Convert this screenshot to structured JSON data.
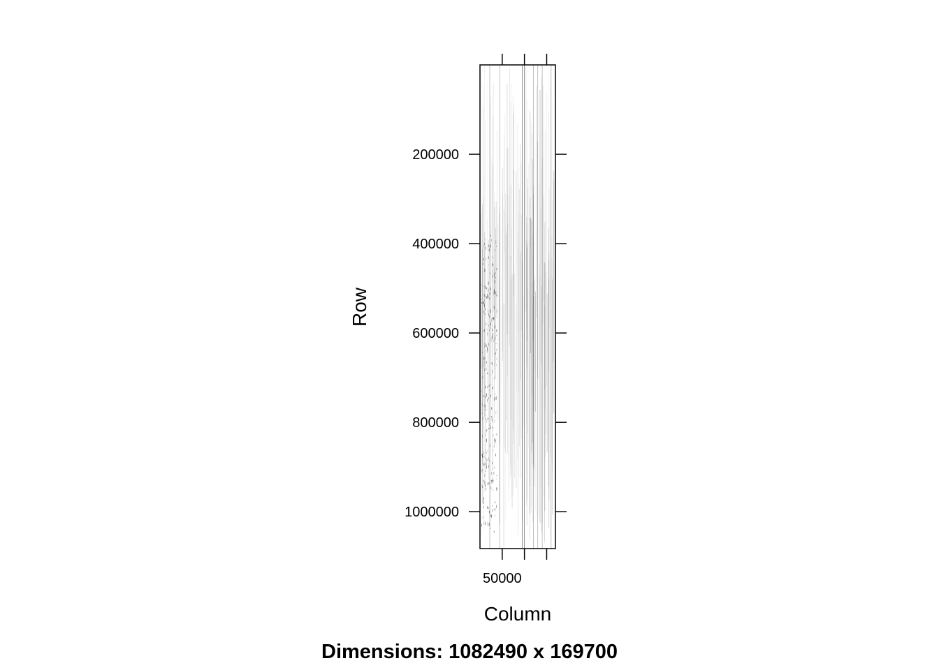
{
  "chart_data": {
    "type": "heatmap",
    "subtype": "sparse-matrix-image",
    "matrix": {
      "rows": 1082490,
      "cols": 169700
    },
    "xlabel": "Column",
    "ylabel": "Row",
    "caption": "Dimensions: 1082490 x 169700",
    "xlim": [
      0,
      169700
    ],
    "ylim": [
      1082490,
      0
    ],
    "x_ticks": [
      {
        "value": 50000,
        "label": "50000"
      },
      {
        "value": 100000,
        "label": ""
      },
      {
        "value": 150000,
        "label": ""
      }
    ],
    "y_ticks": [
      {
        "value": 200000,
        "label": "200000"
      },
      {
        "value": 400000,
        "label": "400000"
      },
      {
        "value": 600000,
        "label": "600000"
      },
      {
        "value": 800000,
        "label": "800000"
      },
      {
        "value": 1000000,
        "label": "1000000"
      }
    ],
    "dense_columns": [
      100000,
      95000,
      130000,
      45000,
      22000,
      160000,
      120000,
      140000
    ],
    "grid": false,
    "colors": {
      "frame": "#000000",
      "nonzero": "#000000",
      "background": "#ffffff"
    }
  }
}
